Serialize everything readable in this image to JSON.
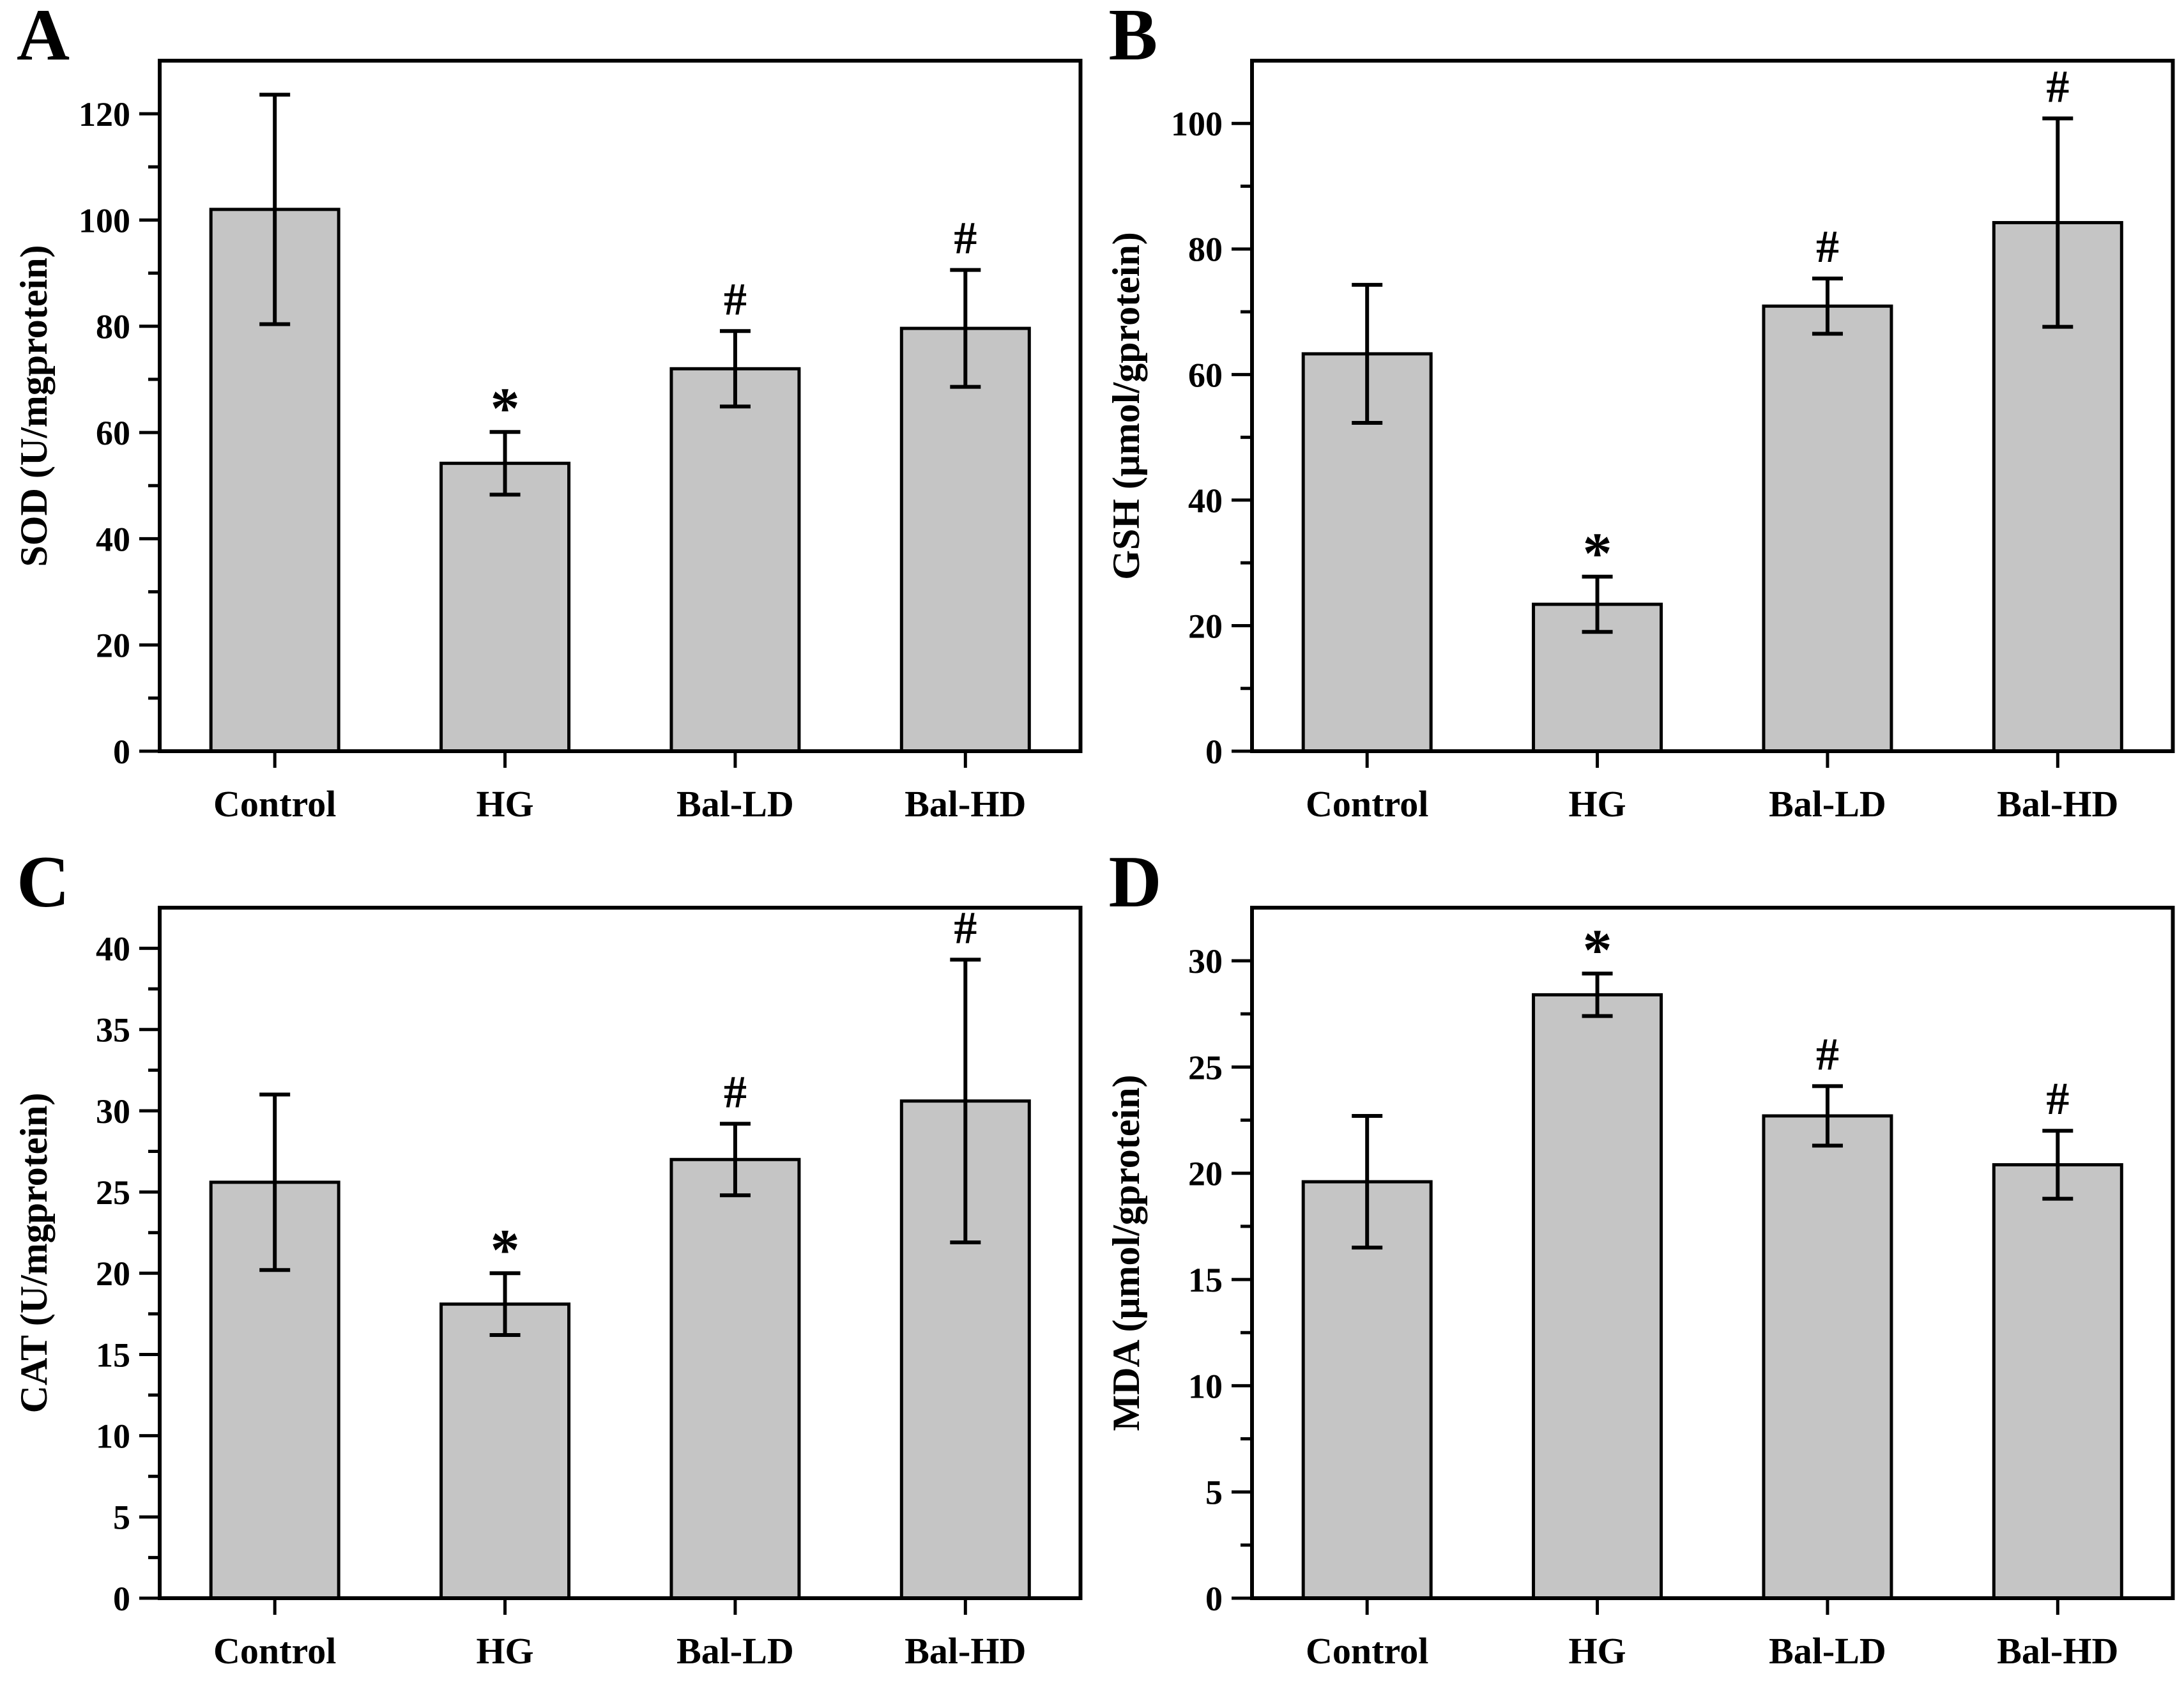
{
  "figure": {
    "background": "#ffffff",
    "bar_fill": "#c5c5c5",
    "bar_stroke": "#000000",
    "axis_color": "#000000",
    "error_bar_color": "#000000"
  },
  "chart_data": [
    {
      "type": "bar",
      "panel_label": "A",
      "title": "",
      "xlabel": "",
      "ylabel": "SOD (U/mgprotein)",
      "categories": [
        "Control",
        "HG",
        "Bal-LD",
        "Bal-HD"
      ],
      "values": [
        102,
        54.2,
        72,
        79.6
      ],
      "errors": [
        21.6,
        5.9,
        7.1,
        11
      ],
      "significance": [
        "",
        "*",
        "#",
        "#"
      ],
      "ylim": [
        0,
        130
      ],
      "yticks": [
        0,
        20,
        40,
        60,
        80,
        100,
        120
      ],
      "minor_tick_step": 10,
      "grid": false,
      "legend": "none"
    },
    {
      "type": "bar",
      "panel_label": "B",
      "title": "",
      "xlabel": "",
      "ylabel": "GSH (μmol/gprotein)",
      "categories": [
        "Control",
        "HG",
        "Bal-LD",
        "Bal-HD"
      ],
      "values": [
        63.3,
        23.4,
        70.9,
        84.2
      ],
      "errors": [
        11,
        4.4,
        4.4,
        16.6
      ],
      "significance": [
        "",
        "*",
        "#",
        "#"
      ],
      "ylim": [
        0,
        110
      ],
      "yticks": [
        0,
        20,
        40,
        60,
        80,
        100
      ],
      "minor_tick_step": 10,
      "grid": false,
      "legend": "none"
    },
    {
      "type": "bar",
      "panel_label": "C",
      "title": "",
      "xlabel": "",
      "ylabel": "CAT (U/mgprotein)",
      "categories": [
        "Control",
        "HG",
        "Bal-LD",
        "Bal-HD"
      ],
      "values": [
        25.6,
        18.1,
        27,
        30.6
      ],
      "errors": [
        5.4,
        1.9,
        2.2,
        8.7
      ],
      "significance": [
        "",
        "*",
        "#",
        "#"
      ],
      "ylim": [
        0,
        42.5
      ],
      "yticks": [
        0,
        5,
        10,
        15,
        20,
        25,
        30,
        35,
        40
      ],
      "minor_tick_step": 2.5,
      "grid": false,
      "legend": "none"
    },
    {
      "type": "bar",
      "panel_label": "D",
      "title": "",
      "xlabel": "",
      "ylabel": "MDA (μmol/gprotein)",
      "categories": [
        "Control",
        "HG",
        "Bal-LD",
        "Bal-HD"
      ],
      "values": [
        19.6,
        28.4,
        22.7,
        20.4
      ],
      "errors": [
        3.1,
        1.0,
        1.4,
        1.6
      ],
      "significance": [
        "",
        "*",
        "#",
        "#"
      ],
      "ylim": [
        0,
        32.5
      ],
      "yticks": [
        0,
        5,
        10,
        15,
        20,
        25,
        30
      ],
      "minor_tick_step": 2.5,
      "grid": false,
      "legend": "none"
    }
  ]
}
